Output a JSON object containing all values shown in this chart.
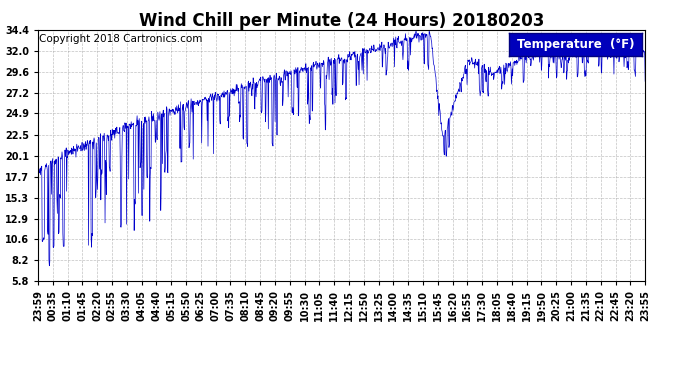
{
  "title": "Wind Chill per Minute (24 Hours) 20180203",
  "copyright_text": "Copyright 2018 Cartronics.com",
  "legend_label": "Temperature  (°F)",
  "line_color": "#0000cc",
  "background_color": "#ffffff",
  "plot_bg_color": "#ffffff",
  "grid_color": "#999999",
  "yticks": [
    5.8,
    8.2,
    10.6,
    12.9,
    15.3,
    17.7,
    20.1,
    22.5,
    24.9,
    27.2,
    29.6,
    32.0,
    34.4
  ],
  "ymin": 5.8,
  "ymax": 34.4,
  "xtick_labels": [
    "23:59",
    "00:35",
    "01:10",
    "01:45",
    "02:20",
    "02:55",
    "03:30",
    "04:05",
    "04:40",
    "05:15",
    "05:50",
    "06:25",
    "07:00",
    "07:35",
    "08:10",
    "08:45",
    "09:20",
    "09:55",
    "10:30",
    "11:05",
    "11:40",
    "12:15",
    "12:50",
    "13:25",
    "14:00",
    "14:35",
    "15:10",
    "15:45",
    "16:20",
    "16:55",
    "17:30",
    "18:05",
    "18:40",
    "19:15",
    "19:50",
    "20:25",
    "21:00",
    "21:35",
    "22:10",
    "22:45",
    "23:20",
    "23:55"
  ],
  "title_fontsize": 12,
  "tick_fontsize": 7,
  "legend_fontsize": 8.5,
  "copyright_fontsize": 7.5
}
